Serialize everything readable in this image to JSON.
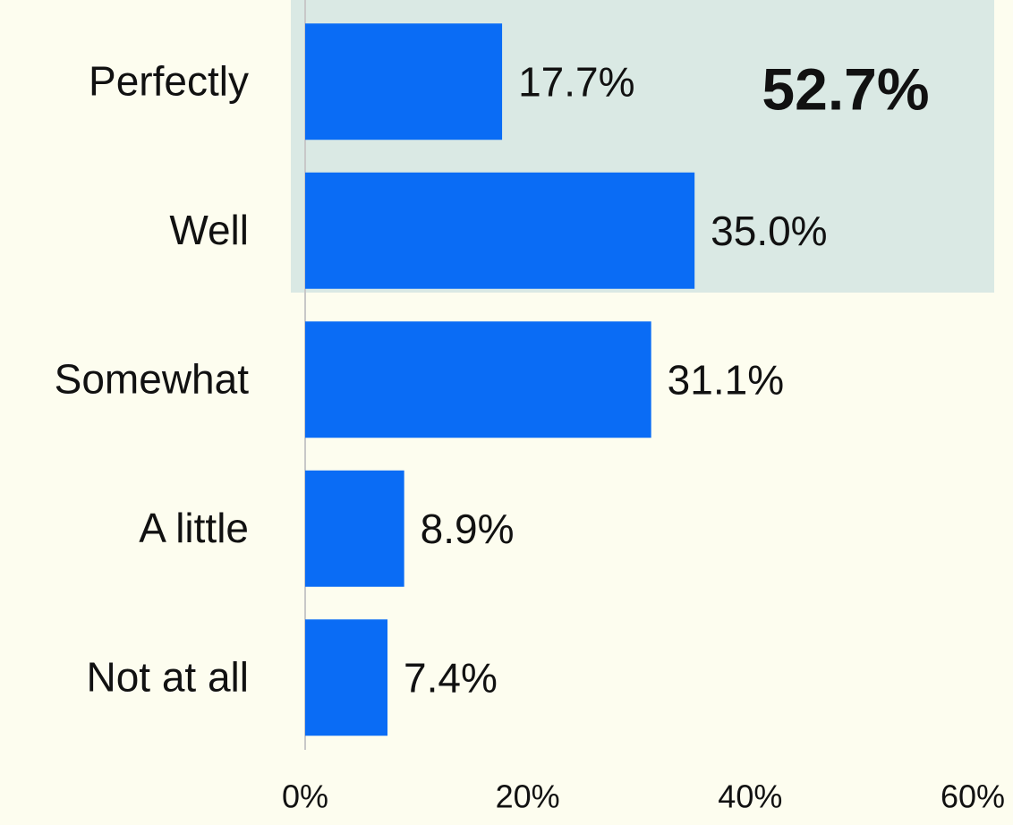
{
  "chart_data": {
    "type": "hbar",
    "categories": [
      "Perfectly",
      "Well",
      "Somewhat",
      "A little",
      "Not at all"
    ],
    "values": [
      17.7,
      35.0,
      31.1,
      8.9,
      7.4
    ],
    "value_labels": [
      "17.7%",
      "35.0%",
      "31.1%",
      "8.9%",
      "7.4%"
    ],
    "color": "#0a6cf5",
    "xlim": [
      0,
      60
    ],
    "xticks": [
      {
        "value": 0,
        "label": "0%"
      },
      {
        "value": 20,
        "label": "20%"
      },
      {
        "value": 40,
        "label": "40%"
      },
      {
        "value": 60,
        "label": "60%"
      }
    ],
    "grid": false,
    "annotation": {
      "text": "52.7%",
      "color": "#0a6cf5"
    }
  }
}
